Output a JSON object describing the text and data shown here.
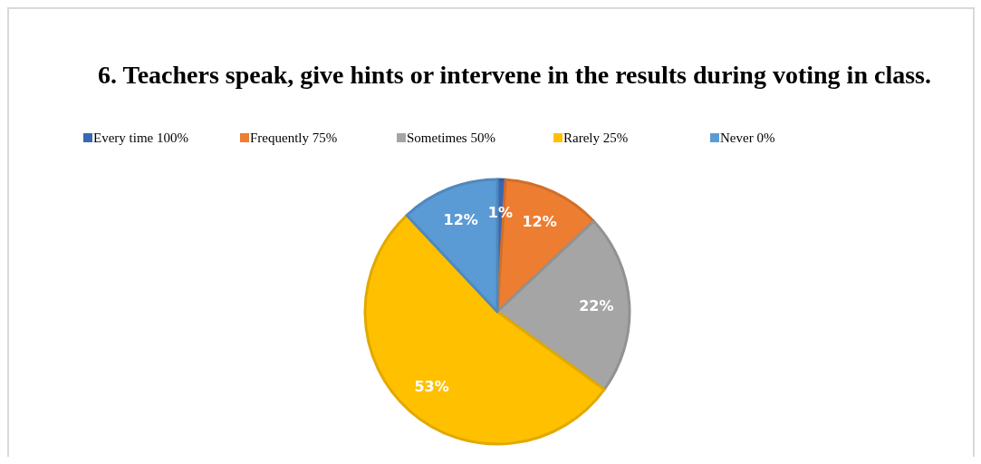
{
  "chart_data": {
    "type": "pie",
    "title": "6. Teachers speak, give hints or intervene in the results during voting in class.",
    "categories": [
      "Every time 100%",
      "Frequently 75%",
      "Sometimes 50%",
      "Rarely 25%",
      "Never 0%"
    ],
    "values": [
      1,
      12,
      22,
      53,
      12
    ],
    "colors": [
      "#3a67b3",
      "#ed7d31",
      "#a5a5a5",
      "#ffc000",
      "#5b9bd5"
    ],
    "value_labels": [
      "1%",
      "12%",
      "22%",
      "53%",
      "12%"
    ],
    "legend": "top"
  }
}
